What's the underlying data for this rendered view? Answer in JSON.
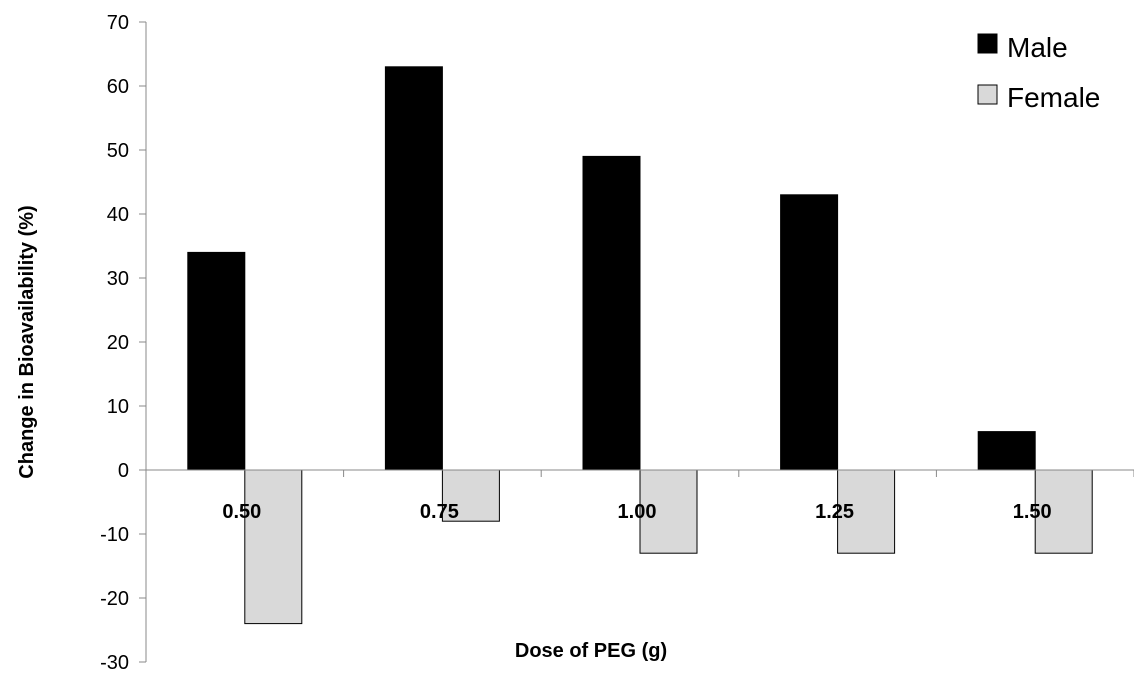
{
  "chart_data": {
    "type": "bar",
    "categories": [
      "0.50",
      "0.75",
      "1.00",
      "1.25",
      "1.50"
    ],
    "series": [
      {
        "name": "Male",
        "values": [
          34,
          63,
          49,
          43,
          6
        ],
        "color": "#000000"
      },
      {
        "name": "Female",
        "values": [
          -24,
          -8,
          -13,
          -13,
          -13
        ],
        "color": "#d9d9d9"
      }
    ],
    "xlabel": "Dose of PEG (g)",
    "ylabel": "Change in Bioavailability (%)",
    "ylim": [
      -30,
      70
    ],
    "yticks": [
      -30,
      -20,
      -10,
      0,
      10,
      20,
      30,
      40,
      50,
      60,
      70
    ],
    "grid": false,
    "legend_position": "top-right"
  }
}
